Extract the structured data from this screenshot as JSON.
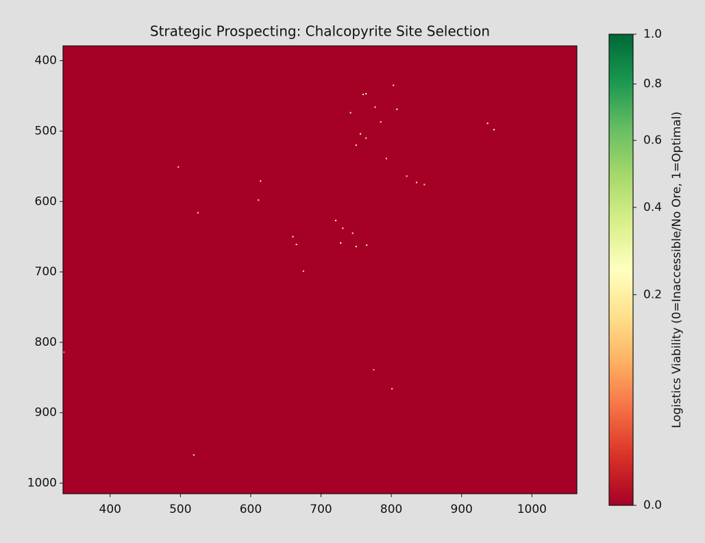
{
  "chart_data": {
    "type": "heatmap",
    "title": "Strategic Prospecting: Chalcopyrite Site Selection",
    "xlim": [
      333,
      1064
    ],
    "ylim": [
      1015,
      379
    ],
    "xticks": [
      400,
      500,
      600,
      700,
      800,
      900,
      1000
    ],
    "yticks": [
      400,
      500,
      600,
      700,
      800,
      900,
      1000
    ],
    "background_value": 0,
    "x": [
      760,
      764,
      742,
      777,
      808,
      785,
      756,
      750,
      764,
      937,
      946,
      497,
      614,
      611,
      525,
      721,
      731,
      745,
      660,
      665,
      728,
      750,
      765,
      675,
      519,
      836,
      847,
      793,
      803,
      334,
      775,
      801,
      822
    ],
    "y": [
      448,
      447,
      474,
      466,
      469,
      487,
      504,
      520,
      510,
      489,
      498,
      551,
      571,
      598,
      616,
      627,
      638,
      645,
      650,
      661,
      659,
      664,
      662,
      699,
      960,
      573,
      576,
      539,
      435,
      814,
      839,
      866,
      564
    ],
    "values": [
      0.3,
      0.25,
      0.3,
      0.2,
      0.25,
      0.15,
      0.25,
      0.2,
      0.2,
      0.2,
      0.25,
      0.15,
      0.2,
      0.15,
      0.15,
      0.25,
      0.2,
      0.3,
      0.3,
      0.2,
      0.25,
      0.25,
      0.3,
      0.15,
      0.3,
      0.2,
      0.15,
      0.15,
      0.2,
      0.15,
      0.1,
      0.15,
      0.15
    ],
    "colorbar": {
      "label": "Logistics Viability (0=Inaccessible/No Ore, 1=Optimal)",
      "lim": [
        0,
        1
      ],
      "ticks": [
        {
          "value": 0,
          "label": "0.0"
        },
        0.2,
        0.4,
        0.6,
        0.8,
        {
          "value": 1,
          "label": "1.0"
        }
      ],
      "norm": "power",
      "gamma": 0.5,
      "colormap": [
        "#a50026",
        "#d73027",
        "#f46d43",
        "#fdae61",
        "#fee08b",
        "#ffffbf",
        "#d9ef8b",
        "#a6d96a",
        "#66bd63",
        "#1a9850",
        "#006837"
      ]
    }
  }
}
